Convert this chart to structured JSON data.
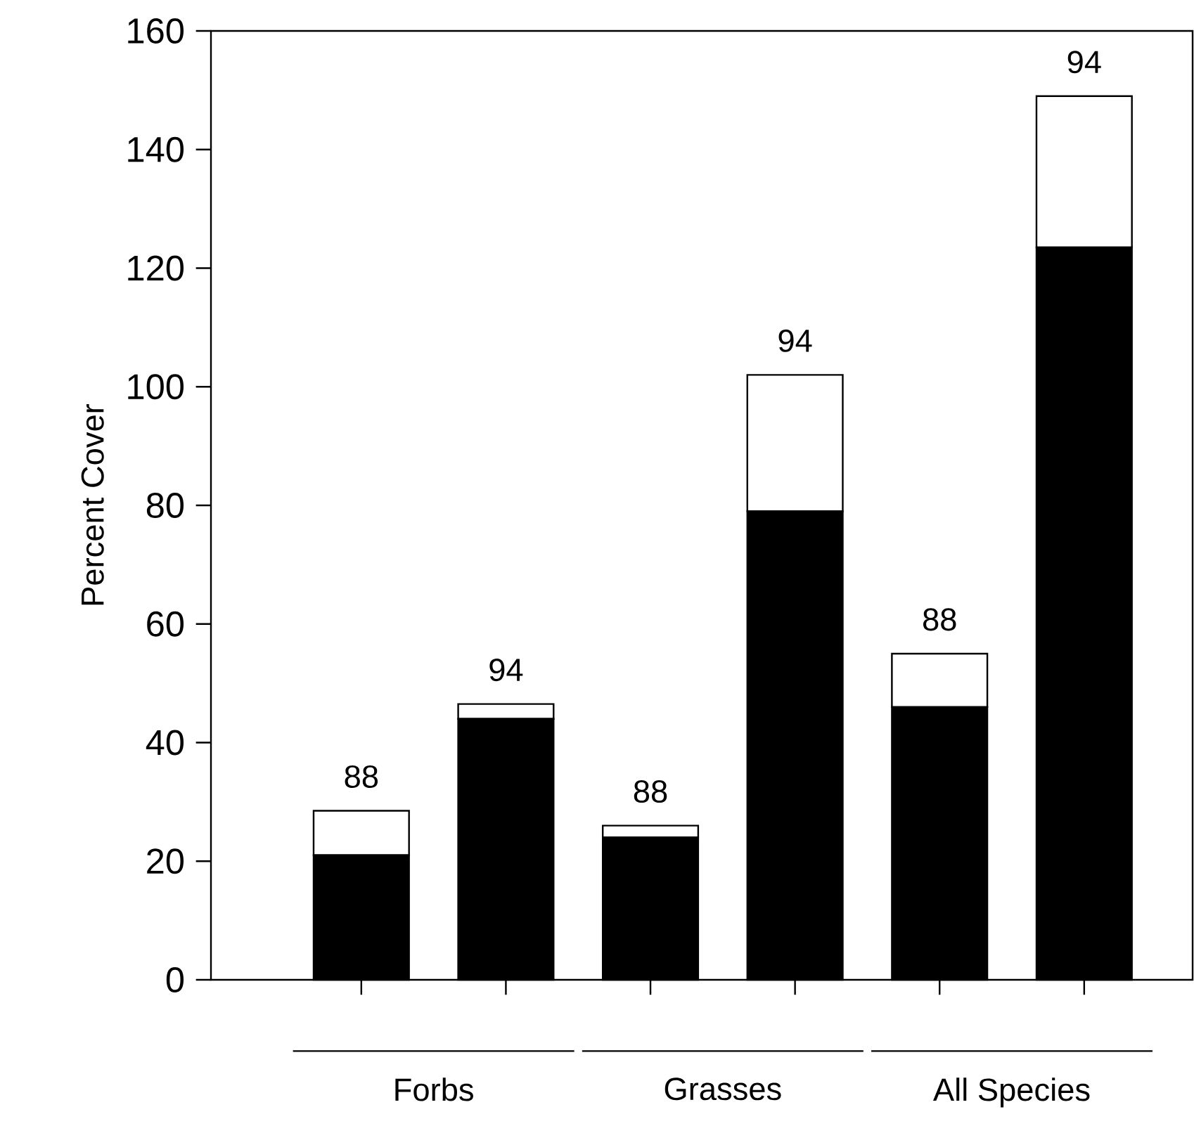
{
  "chart_data": {
    "type": "bar",
    "stacked": true,
    "ylabel": "Percent Cover",
    "categories": [
      "88",
      "94",
      "88",
      "94",
      "88",
      "94"
    ],
    "series": [
      {
        "color": "#000000",
        "values": [
          21,
          44,
          24,
          79,
          46,
          123.5
        ]
      },
      {
        "color": "#ffffff",
        "values": [
          7.5,
          2.5,
          2,
          23,
          9,
          25.5
        ]
      }
    ],
    "ylim": [
      0,
      160
    ],
    "yticks": [
      0,
      20,
      40,
      60,
      80,
      100,
      120,
      140,
      160
    ],
    "annotations": [
      "Forbs",
      "Grasses",
      "All Species"
    ],
    "grid": false
  }
}
